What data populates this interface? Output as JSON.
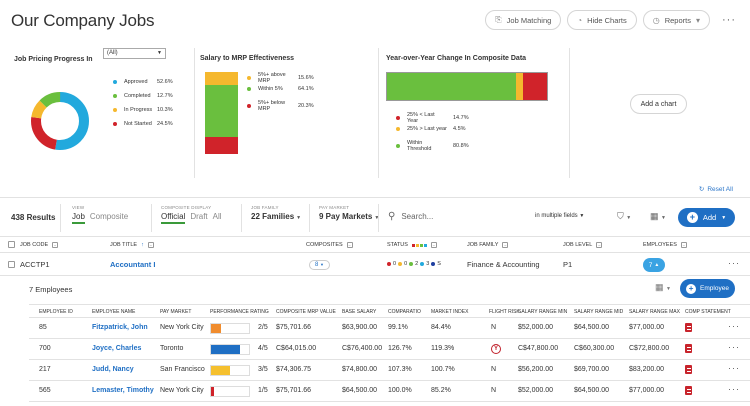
{
  "header": {
    "title": "Our Company Jobs",
    "actions": {
      "job_matching": "Job Matching",
      "hide_charts": "Hide Charts",
      "reports": "Reports",
      "more": "···"
    }
  },
  "charts": {
    "pricing": {
      "title": "Job Pricing Progress In",
      "filter": "(All)",
      "items": [
        {
          "label": "Approved",
          "value": "52.6%",
          "pct": 52.6,
          "color": "#22a9dd"
        },
        {
          "label": "Completed",
          "value": "12.7%",
          "pct": 12.7,
          "color": "#6abf3e"
        },
        {
          "label": "In Progress",
          "value": "10.3%",
          "pct": 10.3,
          "color": "#f5b82e"
        },
        {
          "label": "Not Started",
          "value": "24.5%",
          "pct": 24.5,
          "color": "#d0232a"
        }
      ]
    },
    "salary": {
      "title": "Salary to MRP Effectiveness",
      "items": [
        {
          "label": "5%+ above MRP",
          "value": "15.6%",
          "pct": 15.6,
          "color": "#f5b82e"
        },
        {
          "label": "Within 5%",
          "value": "64.1%",
          "pct": 64.1,
          "color": "#6abf3e"
        },
        {
          "label": "5%+ below MRP",
          "value": "20.3%",
          "pct": 20.3,
          "color": "#d0232a"
        }
      ]
    },
    "yoy": {
      "title": "Year-over-Year Change In Composite Data",
      "items": [
        {
          "label": "25% < Last Year",
          "value": "14.7%",
          "pct": 14.7,
          "color": "#d0232a"
        },
        {
          "label": "25% > Last year",
          "value": "4.5%",
          "pct": 4.5,
          "color": "#f5b82e"
        },
        {
          "label": "Within Threshold",
          "value": "80.8%",
          "pct": 80.8,
          "color": "#6abf3e"
        }
      ]
    },
    "add_chart": "Add a chart",
    "reset_all": "Reset All"
  },
  "toolbar": {
    "results": "438 Results",
    "view": {
      "label": "VIEW",
      "active": "Job",
      "inactive": "Composite"
    },
    "composite_display": {
      "label": "COMPOSITE DISPLAY",
      "active": "Official",
      "opt2": "Draft",
      "opt3": "All"
    },
    "job_family": {
      "label": "JOB FAMILY",
      "value": "22 Families"
    },
    "pay_market": {
      "label": "PAY MARKET",
      "value": "9 Pay Markets"
    },
    "search_placeholder": "Search...",
    "search_scope": "in multiple fields",
    "add": "Add"
  },
  "table": {
    "headers": {
      "job_code": "JOB CODE",
      "job_title": "JOB TITLE",
      "composites": "COMPOSITES",
      "status": "STATUS",
      "job_family": "JOB FAMILY",
      "job_level": "JOB LEVEL",
      "employees": "EMPLOYEES"
    },
    "row": {
      "job_code": "ACCTP1",
      "job_title": "Accountant I",
      "composites": "8",
      "status": "0 ● 0 ● 2 ● 3 ● S",
      "job_family": "Finance & Accounting",
      "job_level": "P1",
      "employees": "7"
    }
  },
  "employees": {
    "title": "7 Employees",
    "add_label": "Employee",
    "headers": [
      "EMPLOYEE ID",
      "EMPLOYEE NAME",
      "PAY MARKET",
      "PERFORMANCE RATING",
      "COMPOSITE MRP VALUE",
      "BASE SALARY",
      "COMPARATIO",
      "MARKET INDEX",
      "FLIGHT RISK",
      "SALARY RANGE MIN",
      "SALARY RANGE MID",
      "SALARY RANGE MAX",
      "COMP STATEMENT"
    ],
    "rows": [
      {
        "id": "85",
        "name": "Fitzpatrick, John",
        "market": "New York City",
        "rating": "2/5",
        "perf": 0.25,
        "perf_color": "#f08c2e",
        "mrp": "$75,701.66",
        "base": "$63,900.00",
        "compa": "99.1%",
        "index": "84.4%",
        "risk": "N",
        "min": "$52,000.00",
        "mid": "$64,500.00",
        "max": "$77,000.00"
      },
      {
        "id": "700",
        "name": "Joyce, Charles",
        "market": "Toronto",
        "rating": "4/5",
        "perf": 0.75,
        "perf_color": "#1f6fc4",
        "mrp": "C$64,015.00",
        "base": "C$76,400.00",
        "compa": "126.7%",
        "index": "119.3%",
        "risk": "Y",
        "min": "C$47,800.00",
        "mid": "C$60,300.00",
        "max": "C$72,800.00"
      },
      {
        "id": "217",
        "name": "Judd, Nancy",
        "market": "San Francisco",
        "rating": "3/5",
        "perf": 0.5,
        "perf_color": "#f5c02e",
        "mrp": "$74,306.75",
        "base": "$74,800.00",
        "compa": "107.3%",
        "index": "100.7%",
        "risk": "N",
        "min": "$56,200.00",
        "mid": "$69,700.00",
        "max": "$83,200.00"
      },
      {
        "id": "565",
        "name": "Lemaster, Timothy",
        "market": "New York City",
        "rating": "1/5",
        "perf": 0.08,
        "perf_color": "#d0232a",
        "mrp": "$75,701.66",
        "base": "$64,500.00",
        "compa": "100.0%",
        "index": "85.2%",
        "risk": "N",
        "min": "$52,000.00",
        "mid": "$64,500.00",
        "max": "$77,000.00"
      }
    ]
  }
}
